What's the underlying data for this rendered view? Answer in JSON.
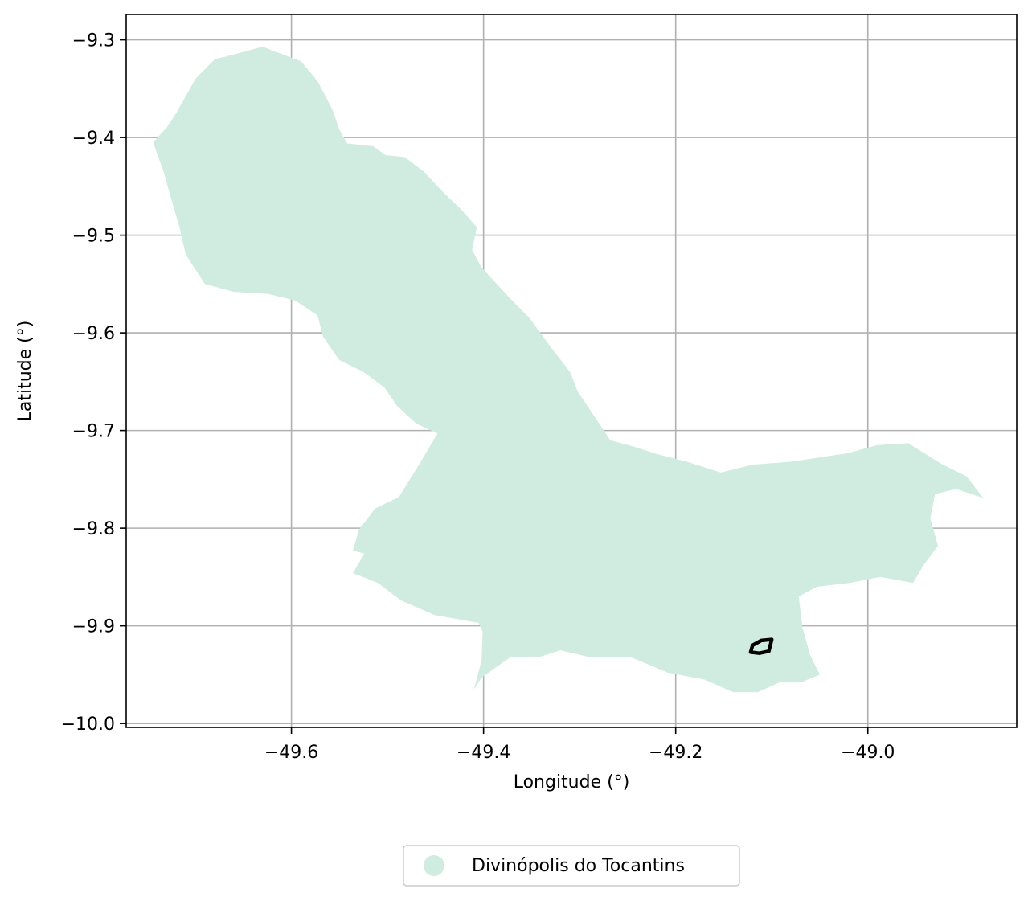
{
  "chart_data": {
    "type": "map",
    "xlabel": "Longitude (°)",
    "ylabel": "Latitude (°)",
    "xlim": [
      -49.772,
      -48.845
    ],
    "ylim": [
      -10.004,
      -9.274
    ],
    "x_ticks": [
      -49.6,
      -49.4,
      -49.2,
      -49.0
    ],
    "y_ticks": [
      -9.3,
      -9.4,
      -9.5,
      -9.6,
      -9.7,
      -9.8,
      -9.9,
      -10.0
    ],
    "x_tick_labels": [
      "−49.6",
      "−49.4",
      "−49.2",
      "−49.0"
    ],
    "y_tick_labels": [
      "−9.3",
      "−9.4",
      "−9.5",
      "−9.6",
      "−9.7",
      "−9.8",
      "−9.9",
      "−10.0"
    ],
    "grid": true,
    "legend_position": "below",
    "region": {
      "name": "Divinópolis do Tocantins",
      "color": "#d0ece0",
      "outline": [
        [
          -49.63,
          -9.307
        ],
        [
          -49.59,
          -9.322
        ],
        [
          -49.573,
          -9.342
        ],
        [
          -49.557,
          -9.372
        ],
        [
          -49.55,
          -9.392
        ],
        [
          -49.542,
          -9.406
        ],
        [
          -49.515,
          -9.409
        ],
        [
          -49.502,
          -9.418
        ],
        [
          -49.482,
          -9.42
        ],
        [
          -49.462,
          -9.435
        ],
        [
          -49.443,
          -9.455
        ],
        [
          -49.422,
          -9.475
        ],
        [
          -49.407,
          -9.492
        ],
        [
          -49.412,
          -9.515
        ],
        [
          -49.402,
          -9.533
        ],
        [
          -49.375,
          -9.562
        ],
        [
          -49.352,
          -9.585
        ],
        [
          -49.332,
          -9.612
        ],
        [
          -49.31,
          -9.64
        ],
        [
          -49.302,
          -9.66
        ],
        [
          -49.285,
          -9.685
        ],
        [
          -49.268,
          -9.71
        ],
        [
          -49.245,
          -9.716
        ],
        [
          -49.22,
          -9.724
        ],
        [
          -49.188,
          -9.732
        ],
        [
          -49.153,
          -9.743
        ],
        [
          -49.12,
          -9.735
        ],
        [
          -49.08,
          -9.732
        ],
        [
          -49.053,
          -9.728
        ],
        [
          -49.02,
          -9.723
        ],
        [
          -48.99,
          -9.715
        ],
        [
          -48.958,
          -9.713
        ],
        [
          -48.922,
          -9.735
        ],
        [
          -48.897,
          -9.747
        ],
        [
          -48.88,
          -9.769
        ],
        [
          -48.908,
          -9.76
        ],
        [
          -48.93,
          -9.765
        ],
        [
          -48.935,
          -9.79
        ],
        [
          -48.927,
          -9.818
        ],
        [
          -48.942,
          -9.838
        ],
        [
          -48.953,
          -9.856
        ],
        [
          -48.987,
          -9.85
        ],
        [
          -49.019,
          -9.856
        ],
        [
          -49.053,
          -9.86
        ],
        [
          -49.072,
          -9.87
        ],
        [
          -49.068,
          -9.902
        ],
        [
          -49.06,
          -9.93
        ],
        [
          -49.05,
          -9.95
        ],
        [
          -49.07,
          -9.958
        ],
        [
          -49.092,
          -9.958
        ],
        [
          -49.115,
          -9.968
        ],
        [
          -49.14,
          -9.968
        ],
        [
          -49.17,
          -9.955
        ],
        [
          -49.208,
          -9.948
        ],
        [
          -49.247,
          -9.932
        ],
        [
          -49.29,
          -9.932
        ],
        [
          -49.32,
          -9.925
        ],
        [
          -49.342,
          -9.932
        ],
        [
          -49.372,
          -9.932
        ],
        [
          -49.402,
          -9.953
        ],
        [
          -49.41,
          -9.965
        ],
        [
          -49.402,
          -9.935
        ],
        [
          -49.401,
          -9.906
        ],
        [
          -49.405,
          -9.897
        ],
        [
          -49.451,
          -9.889
        ],
        [
          -49.486,
          -9.874
        ],
        [
          -49.51,
          -9.856
        ],
        [
          -49.536,
          -9.846
        ],
        [
          -49.524,
          -9.826
        ],
        [
          -49.536,
          -9.823
        ],
        [
          -49.53,
          -9.802
        ],
        [
          -49.513,
          -9.78
        ],
        [
          -49.488,
          -9.768
        ],
        [
          -49.466,
          -9.733
        ],
        [
          -49.448,
          -9.703
        ],
        [
          -49.47,
          -9.693
        ],
        [
          -49.49,
          -9.675
        ],
        [
          -49.503,
          -9.656
        ],
        [
          -49.525,
          -9.64
        ],
        [
          -49.55,
          -9.628
        ],
        [
          -49.567,
          -9.604
        ],
        [
          -49.573,
          -9.582
        ],
        [
          -49.596,
          -9.567
        ],
        [
          -49.625,
          -9.56
        ],
        [
          -49.66,
          -9.558
        ],
        [
          -49.69,
          -9.55
        ],
        [
          -49.71,
          -9.52
        ],
        [
          -49.717,
          -9.49
        ],
        [
          -49.726,
          -9.46
        ],
        [
          -49.733,
          -9.435
        ],
        [
          -49.744,
          -9.405
        ],
        [
          -49.73,
          -9.39
        ],
        [
          -49.72,
          -9.375
        ],
        [
          -49.7,
          -9.34
        ],
        [
          -49.68,
          -9.32
        ],
        [
          -49.66,
          -9.315
        ]
      ]
    },
    "marker": {
      "outline": [
        [
          -49.111,
          -9.915
        ],
        [
          -49.1,
          -9.914
        ],
        [
          -49.103,
          -9.926
        ],
        [
          -49.113,
          -9.928
        ],
        [
          -49.122,
          -9.927
        ],
        [
          -49.12,
          -9.92
        ]
      ],
      "color": "#000000"
    },
    "legend": [
      {
        "label": "Divinópolis do Tocantins",
        "color": "#d0ece0"
      }
    ]
  }
}
